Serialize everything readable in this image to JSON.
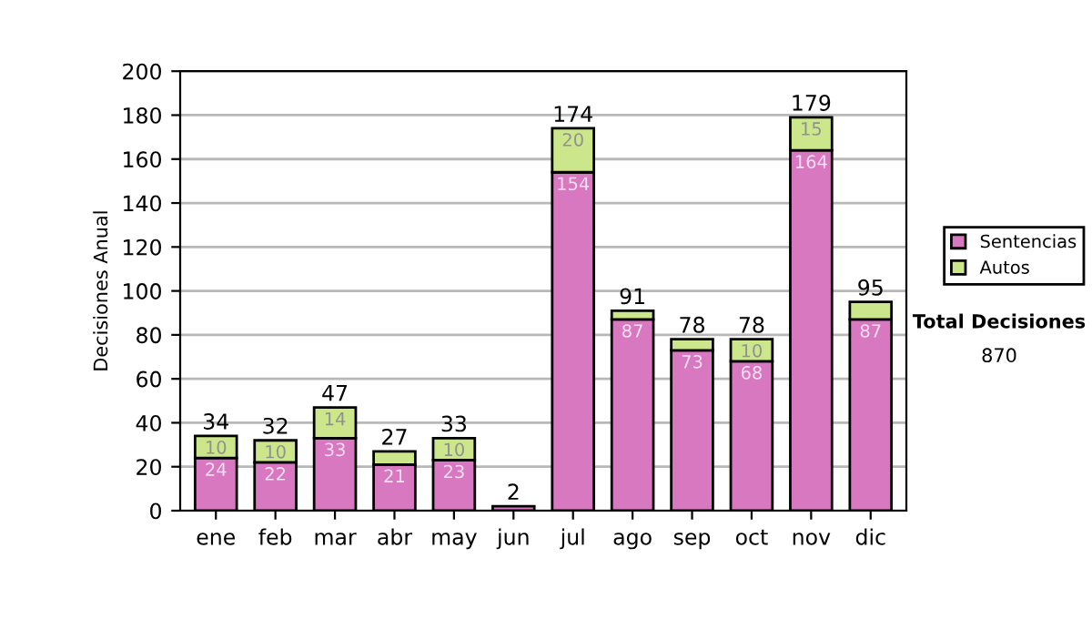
{
  "chart_data": {
    "type": "bar",
    "stacked": true,
    "ylabel": "Decisiones Anual",
    "categories": [
      "ene",
      "feb",
      "mar",
      "abr",
      "may",
      "jun",
      "jul",
      "ago",
      "sep",
      "oct",
      "nov",
      "dic"
    ],
    "series": [
      {
        "name": "Sentencias",
        "color": "#d878c0",
        "values": [
          24,
          22,
          33,
          21,
          23,
          2,
          154,
          87,
          73,
          68,
          164,
          87
        ],
        "value_labels": [
          "24",
          "22",
          "33",
          "21",
          "23",
          null,
          "154",
          "87",
          "73",
          "68",
          "164",
          "87"
        ]
      },
      {
        "name": "Autos",
        "color": "#cce68c",
        "values": [
          10,
          10,
          14,
          6,
          10,
          null,
          20,
          4,
          5,
          10,
          15,
          8
        ],
        "value_labels": [
          "10",
          "10",
          "14",
          null,
          "10",
          null,
          "20",
          null,
          null,
          "10",
          "15",
          null
        ]
      }
    ],
    "totals": [
      "34",
      "32",
      "47",
      "27",
      "33",
      "2",
      "174",
      "91",
      "78",
      "78",
      "179",
      "95"
    ],
    "ylim": [
      0,
      200
    ],
    "yticks": [
      0,
      20,
      40,
      60,
      80,
      100,
      120,
      140,
      160,
      180,
      200
    ],
    "grid": "y",
    "legend": "right",
    "annotations": [
      "Total Decisiones",
      "870"
    ]
  }
}
